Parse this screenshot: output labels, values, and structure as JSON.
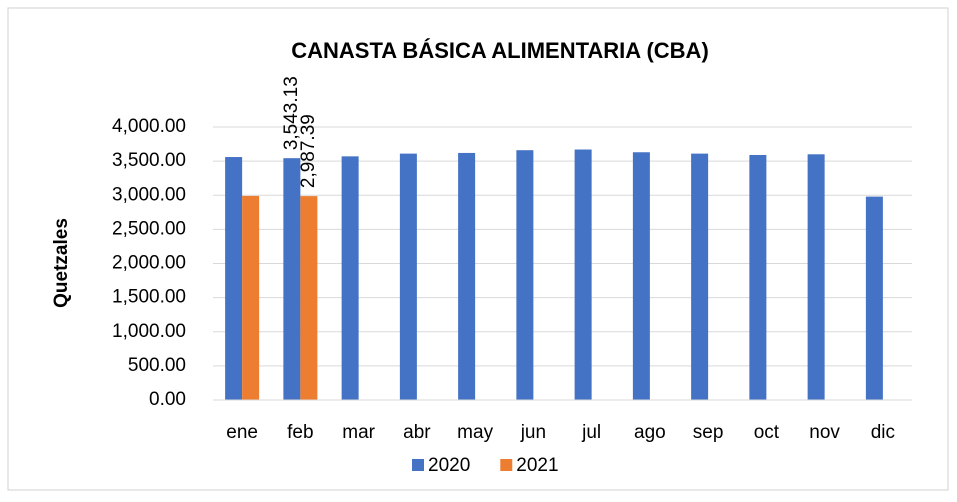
{
  "chart_data": {
    "type": "bar",
    "title": "CANASTA BÁSICA ALIMENTARIA  (CBA)",
    "y_label": "Quetzales",
    "categories": [
      "ene",
      "feb",
      "mar",
      "abr",
      "may",
      "jun",
      "jul",
      "ago",
      "sep",
      "oct",
      "nov",
      "dic"
    ],
    "series": [
      {
        "name": "2020",
        "color": "#4472c4",
        "values": [
          3560,
          3543.13,
          3570,
          3610,
          3620,
          3660,
          3670,
          3630,
          3610,
          3590,
          3600,
          2980
        ],
        "value_labels": [
          null,
          "3,543.13",
          null,
          null,
          null,
          null,
          null,
          null,
          null,
          null,
          null,
          null
        ]
      },
      {
        "name": "2021",
        "color": "#ed7d31",
        "values": [
          2990,
          2987.39,
          null,
          null,
          null,
          null,
          null,
          null,
          null,
          null,
          null,
          null
        ],
        "value_labels": [
          null,
          "2,987.39",
          null,
          null,
          null,
          null,
          null,
          null,
          null,
          null,
          null,
          null
        ]
      }
    ],
    "ylim": [
      0,
      4000
    ],
    "yticks": [
      {
        "value": 0,
        "label": "0.00"
      },
      {
        "value": 500,
        "label": "500.00"
      },
      {
        "value": 1000,
        "label": "1,000.00"
      },
      {
        "value": 1500,
        "label": "1,500.00"
      },
      {
        "value": 2000,
        "label": "2,000.00"
      },
      {
        "value": 2500,
        "label": "2,500.00"
      },
      {
        "value": 3000,
        "label": "3,000.00"
      },
      {
        "value": 3500,
        "label": "3,500.00"
      },
      {
        "value": 4000,
        "label": "4,000.00"
      }
    ],
    "grid": true,
    "legend": "bottom"
  }
}
